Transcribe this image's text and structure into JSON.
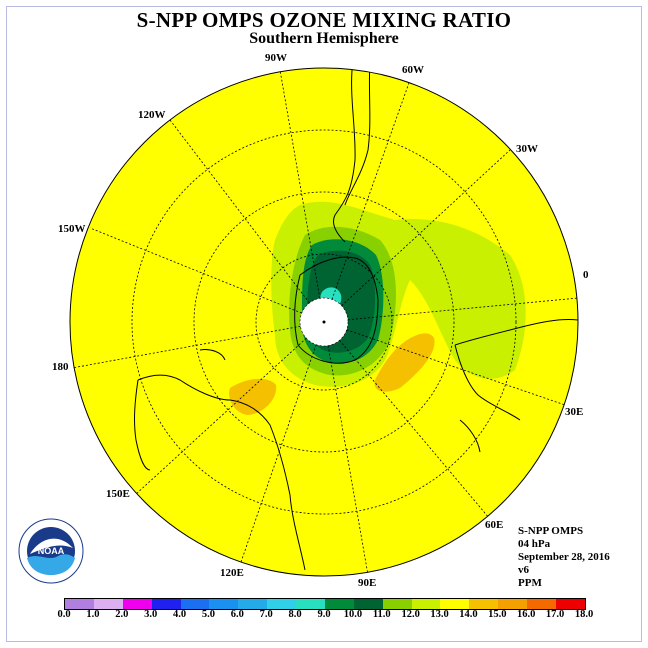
{
  "title": "S-NPP OMPS OZONE MIXING RATIO",
  "subtitle": "Southern Hemisphere",
  "longitude_labels": [
    {
      "text": "90W",
      "key": "lon_90w"
    },
    {
      "text": "60W",
      "key": "lon_60w"
    },
    {
      "text": "30W",
      "key": "lon_30w"
    },
    {
      "text": "0",
      "key": "lon_0"
    },
    {
      "text": "30E",
      "key": "lon_30e"
    },
    {
      "text": "60E",
      "key": "lon_60e"
    },
    {
      "text": "90E",
      "key": "lon_90e"
    },
    {
      "text": "120E",
      "key": "lon_120e"
    },
    {
      "text": "150E",
      "key": "lon_150e"
    },
    {
      "text": "180",
      "key": "lon_180"
    },
    {
      "text": "150W",
      "key": "lon_150w"
    },
    {
      "text": "120W",
      "key": "lon_120w"
    }
  ],
  "info": {
    "instrument": "S-NPP OMPS",
    "pressure": "04 hPa",
    "date": "September 28, 2016",
    "version": "v6",
    "units": "PPM"
  },
  "logo": {
    "text": "NOAA",
    "icon": "noaa-logo-icon"
  },
  "colorbar": {
    "labels": [
      "0.0",
      "1.0",
      "2.0",
      "3.0",
      "4.0",
      "5.0",
      "6.0",
      "7.0",
      "8.0",
      "9.0",
      "10.0",
      "11.0",
      "12.0",
      "13.0",
      "14.0",
      "15.0",
      "16.0",
      "17.0",
      "18.0"
    ],
    "colors": [
      "#b07fe0",
      "#dcb0f0",
      "#ee00ee",
      "#2020f0",
      "#1a70f0",
      "#1a90f0",
      "#24aae8",
      "#30d0e8",
      "#28e0c0",
      "#008a3a",
      "#006432",
      "#88d000",
      "#c8f000",
      "#ffff00",
      "#f4c000",
      "#f4a000",
      "#f46a00",
      "#ee0000",
      "#8a5a3a"
    ]
  }
}
